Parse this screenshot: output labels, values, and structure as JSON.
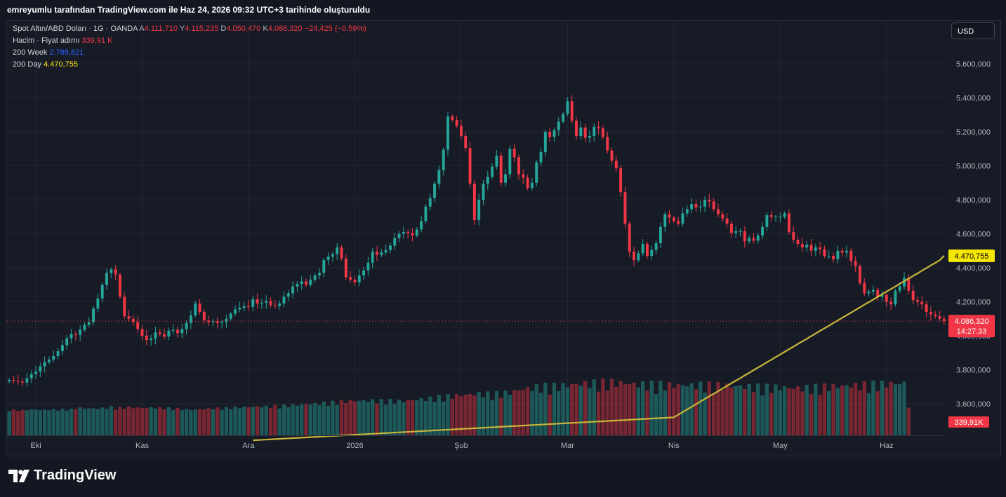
{
  "header": {
    "created_text": "emreyumlu tarafından TradingView.com ile Haz 24, 2026 09:32 UTC+3 tarihinde oluşturuldu"
  },
  "legend": {
    "symbol": "Spot Altın/ABD Doları · 1G · OANDA",
    "open_label": "A",
    "open": "4.111,710",
    "high_label": "Y",
    "high": "4.115,235",
    "low_label": "D",
    "low": "4.050,470",
    "close_label": "K",
    "close": "4.086,320",
    "change": "−24,425 (−0,59%)",
    "volume_label": "Hacim · Fiyat adımı",
    "volume": "339,91 K",
    "ma200w_label": "200 Week",
    "ma200w": "2.785,821",
    "ma200d_label": "200 Day",
    "ma200d": "4.470,755"
  },
  "currency_button": "USD",
  "badges": {
    "ma_value": "4.470,755",
    "last_price": "4.086,320",
    "countdown": "14:27:33",
    "volume": "339,91K"
  },
  "footer": {
    "brand": "TradingView"
  },
  "colors": {
    "up": "#26a69a",
    "down": "#f23645",
    "ma200d": "#c8b53a",
    "background": "#171b26",
    "grid": "#242733"
  },
  "chart_data": {
    "type": "candlestick",
    "y_axis_ticks": [
      "3.600,000",
      "3.800,000",
      "4.000,000",
      "4.200,000",
      "4.400,000",
      "4.600,000",
      "4.800,000",
      "5.000,000",
      "5.200,000",
      "5.400,000",
      "5.600,000"
    ],
    "y_tick_values": [
      3600,
      3800,
      4000,
      4200,
      4400,
      4600,
      4800,
      5000,
      5200,
      5400,
      5600
    ],
    "x_axis_labels": [
      "Eki",
      "Kas",
      "Ara",
      "2026",
      "Şub",
      "Mar",
      "Nis",
      "May",
      "Haz"
    ],
    "x_label_index": [
      6,
      30,
      54,
      78,
      102,
      126,
      150,
      174,
      198
    ],
    "candles_close": [
      3740,
      3735,
      3730,
      3725,
      3750,
      3775,
      3790,
      3820,
      3845,
      3860,
      3880,
      3910,
      3945,
      3985,
      4010,
      4005,
      4035,
      4065,
      4080,
      4160,
      4220,
      4300,
      4370,
      4390,
      4360,
      4230,
      4115,
      4100,
      4080,
      4040,
      4000,
      3975,
      3985,
      4020,
      4010,
      3995,
      4030,
      4035,
      4015,
      4040,
      4075,
      4120,
      4190,
      4140,
      4090,
      4080,
      4085,
      4075,
      4080,
      4100,
      4130,
      4155,
      4165,
      4175,
      4170,
      4215,
      4190,
      4195,
      4205,
      4180,
      4175,
      4190,
      4230,
      4250,
      4290,
      4305,
      4320,
      4300,
      4330,
      4355,
      4370,
      4445,
      4465,
      4480,
      4520,
      4455,
      4345,
      4330,
      4315,
      4355,
      4385,
      4430,
      4495,
      4475,
      4490,
      4505,
      4530,
      4575,
      4600,
      4610,
      4605,
      4590,
      4625,
      4675,
      4760,
      4810,
      4895,
      4975,
      5095,
      5290,
      5270,
      5235,
      5175,
      5105,
      4895,
      4680,
      4800,
      4895,
      4935,
      4995,
      5060,
      4900,
      4950,
      5100,
      5050,
      4950,
      4930,
      4870,
      4900,
      5020,
      5080,
      5200,
      5170,
      5210,
      5260,
      5305,
      5380,
      5265,
      5175,
      5225,
      5165,
      5175,
      5230,
      5220,
      5170,
      5090,
      5030,
      4985,
      4845,
      4660,
      4495,
      4445,
      4485,
      4540,
      4470,
      4505,
      4545,
      4640,
      4715,
      4695,
      4675,
      4660,
      4720,
      4745,
      4775,
      4755,
      4760,
      4800,
      4790,
      4745,
      4715,
      4690,
      4660,
      4605,
      4615,
      4615,
      4555,
      4575,
      4560,
      4590,
      4640,
      4710,
      4700,
      4700,
      4700,
      4720,
      4610,
      4565,
      4540,
      4520,
      4535,
      4500,
      4520,
      4510,
      4470,
      4470,
      4450,
      4500,
      4490,
      4500,
      4440,
      4410,
      4310,
      4250,
      4260,
      4270,
      4230,
      4240,
      4200,
      4185,
      4265,
      4290,
      4340,
      4265,
      4210,
      4200,
      4185,
      4140,
      4125,
      4115,
      4100,
      4086.32
    ],
    "ma200d": [
      3520,
      3536,
      3551,
      3567,
      3582,
      3597,
      3613,
      3628,
      3644,
      3659,
      3674,
      3690,
      3705,
      3721,
      3736,
      3751,
      3767,
      3782,
      3798,
      3813,
      3828,
      3844,
      3859,
      3875,
      3890,
      3905,
      3921,
      3936,
      3952,
      3967,
      3982,
      3998,
      4013,
      4029,
      4044,
      4059,
      4075,
      4090,
      4106,
      4121,
      4136,
      4152,
      4167,
      4183,
      4198,
      4213,
      4229,
      4244,
      4260,
      4275,
      4290,
      4306,
      4321,
      4337,
      4352,
      4367,
      4383,
      4398,
      4414,
      4429,
      4444,
      4470.755
    ],
    "volume_k": [
      210,
      198,
      194,
      186,
      205,
      218,
      216,
      203,
      204,
      214,
      215,
      221,
      228,
      232,
      230,
      292,
      292,
      268,
      265,
      270,
      258,
      287,
      306,
      348,
      305,
      300,
      315,
      327,
      313,
      301,
      296,
      302,
      308,
      304,
      300,
      290,
      288,
      276,
      261,
      240,
      218,
      212,
      218,
      234,
      235,
      261,
      272,
      280,
      278,
      290,
      307,
      312,
      320,
      328,
      332,
      345,
      352,
      354,
      361,
      368,
      380,
      386,
      402,
      408,
      418,
      427,
      442,
      459,
      472,
      486,
      503,
      520,
      529,
      546,
      571,
      588,
      600,
      610,
      620,
      618,
      620,
      628,
      630,
      625,
      620,
      632,
      629,
      608,
      610,
      617,
      629,
      648,
      666,
      692,
      706,
      731,
      755,
      782,
      807,
      828,
      840,
      856,
      876,
      889,
      908,
      930,
      936,
      937,
      930,
      942,
      950,
      967,
      979,
      1008,
      1059,
      1120,
      1150,
      1183,
      1209,
      1240,
      1267,
      1281,
      1272,
      1287,
      1302,
      1318,
      1338,
      1353,
      1375,
      1389,
      1408,
      1419,
      1429,
      1438,
      1447,
      1448,
      1458,
      1446,
      1431,
      1421,
      1405,
      1388,
      1372,
      1367,
      1364,
      1361,
      1358,
      1356,
      1353,
      1344,
      1336,
      1327,
      1331,
      1333,
      1331,
      1334,
      1337,
      1336,
      1330,
      1327,
      1319,
      1313,
      1307,
      1297,
      1286,
      1276,
      1269,
      1265,
      1262,
      1257,
      1246,
      1242,
      1244,
      1240,
      1232,
      1226,
      1217,
      1206,
      1198,
      1203,
      1212,
      1226,
      1232,
      1239,
      1261,
      1283,
      1284,
      1285,
      1296,
      1304,
      1315,
      1325,
      1336,
      1349,
      1358,
      1367,
      1377,
      1387,
      1398,
      1405,
      1407,
      1412,
      1416,
      339.91
    ]
  }
}
